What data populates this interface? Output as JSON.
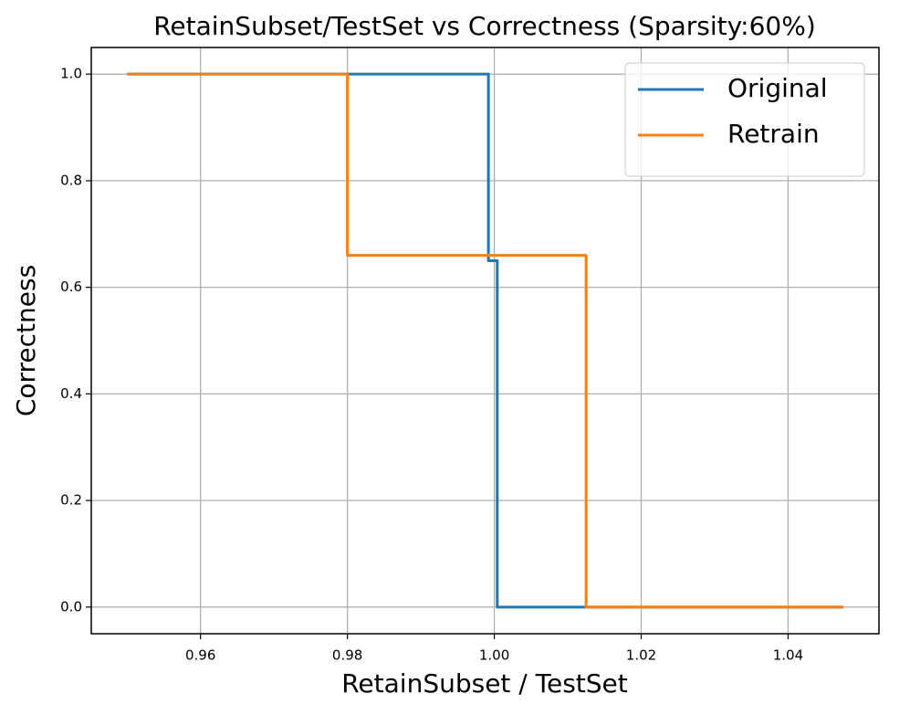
{
  "chart_data": {
    "type": "line",
    "title": "RetainSubset/TestSet vs Correctness (Sparsity:60%)",
    "x_label": "RetainSubset / TestSet",
    "y_label": "Correctness",
    "series": [
      {
        "name": "Original",
        "color": "#1f77b4",
        "x": [
          0.95,
          0.9992,
          0.9992,
          1.0004,
          1.0004,
          1.0475
        ],
        "values": [
          1,
          1,
          0.65,
          0.65,
          0,
          0
        ]
      },
      {
        "name": "Retrain",
        "color": "#ff7f0e",
        "x": [
          0.95,
          0.98,
          0.98,
          1.0125,
          1.0125,
          1.0475
        ],
        "values": [
          1,
          1,
          0.66,
          0.66,
          0,
          0
        ]
      }
    ],
    "xlim": [
      0.945125,
      1.052375
    ],
    "ylim": [
      -0.05,
      1.05
    ],
    "xticks": [
      0.96,
      0.98,
      {
        "value": 1,
        "label": "1.00"
      },
      1.02,
      1.04
    ],
    "yticks": [
      {
        "value": 0,
        "label": "0.0"
      },
      0.2,
      0.4,
      0.6,
      0.8,
      {
        "value": 1,
        "label": "1.0"
      }
    ],
    "grid": true,
    "legend": "upper right"
  }
}
